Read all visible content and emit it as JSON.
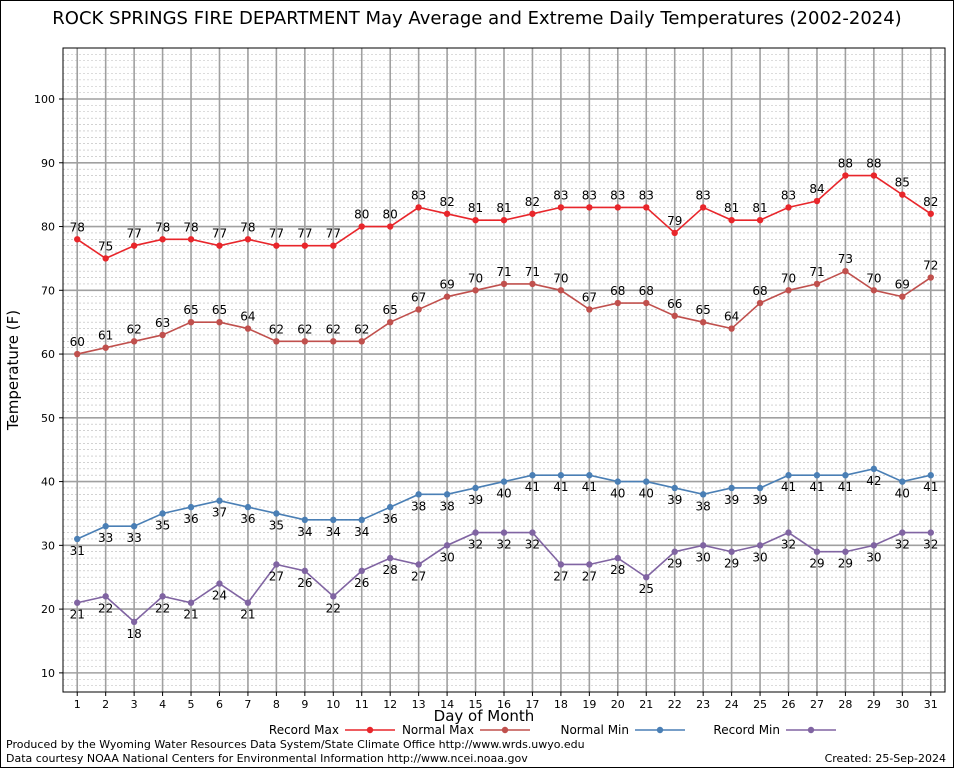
{
  "chart_data": {
    "type": "line",
    "title": "ROCK SPRINGS FIRE DEPARTMENT May Average and Extreme Daily Temperatures (2002-2024)",
    "xlabel": "Day of Month",
    "ylabel": "Temperature (F)",
    "x": [
      1,
      2,
      3,
      4,
      5,
      6,
      7,
      8,
      9,
      10,
      11,
      12,
      13,
      14,
      15,
      16,
      17,
      18,
      19,
      20,
      21,
      22,
      23,
      24,
      25,
      26,
      27,
      28,
      29,
      30,
      31
    ],
    "xlim": [
      0.5,
      31.5
    ],
    "ylim": [
      7,
      108
    ],
    "yticks": [
      10,
      20,
      30,
      40,
      50,
      60,
      70,
      80,
      90,
      100
    ],
    "grid": true,
    "legend_position": "bottom",
    "series": [
      {
        "name": "Record Max",
        "color": "#e8262b",
        "label_pos": "above",
        "values": [
          78,
          75,
          77,
          78,
          78,
          77,
          78,
          77,
          77,
          77,
          80,
          80,
          83,
          82,
          81,
          81,
          82,
          83,
          83,
          83,
          83,
          79,
          83,
          81,
          81,
          83,
          84,
          88,
          88,
          85,
          82
        ]
      },
      {
        "name": "Normal Max",
        "color": "#c0504d",
        "label_pos": "above",
        "values": [
          60,
          61,
          62,
          63,
          65,
          65,
          64,
          62,
          62,
          62,
          62,
          65,
          67,
          69,
          70,
          71,
          71,
          70,
          67,
          68,
          68,
          66,
          65,
          64,
          68,
          70,
          71,
          73,
          70,
          69,
          72
        ]
      },
      {
        "name": "Normal Min",
        "color": "#4a7fb5",
        "label_pos": "below",
        "values": [
          31,
          33,
          33,
          35,
          36,
          37,
          36,
          35,
          34,
          34,
          34,
          36,
          38,
          38,
          39,
          40,
          41,
          41,
          41,
          40,
          40,
          39,
          38,
          39,
          39,
          41,
          41,
          41,
          42,
          40,
          41
        ]
      },
      {
        "name": "Record Min",
        "color": "#8064a2",
        "label_pos": "below",
        "values": [
          21,
          22,
          18,
          22,
          21,
          24,
          21,
          27,
          26,
          22,
          26,
          28,
          27,
          30,
          32,
          32,
          32,
          27,
          27,
          28,
          25,
          29,
          30,
          29,
          30,
          32,
          29,
          29,
          30,
          32,
          32
        ]
      }
    ]
  },
  "footer": {
    "produced_by": "Produced by the Wyoming Water Resources Data System/State Climate Office http://www.wrds.uwyo.edu",
    "courtesy": "Data courtesy NOAA National Centers for Environmental Information http://www.ncei.noaa.gov",
    "created": "Created:  25-Sep-2024"
  }
}
